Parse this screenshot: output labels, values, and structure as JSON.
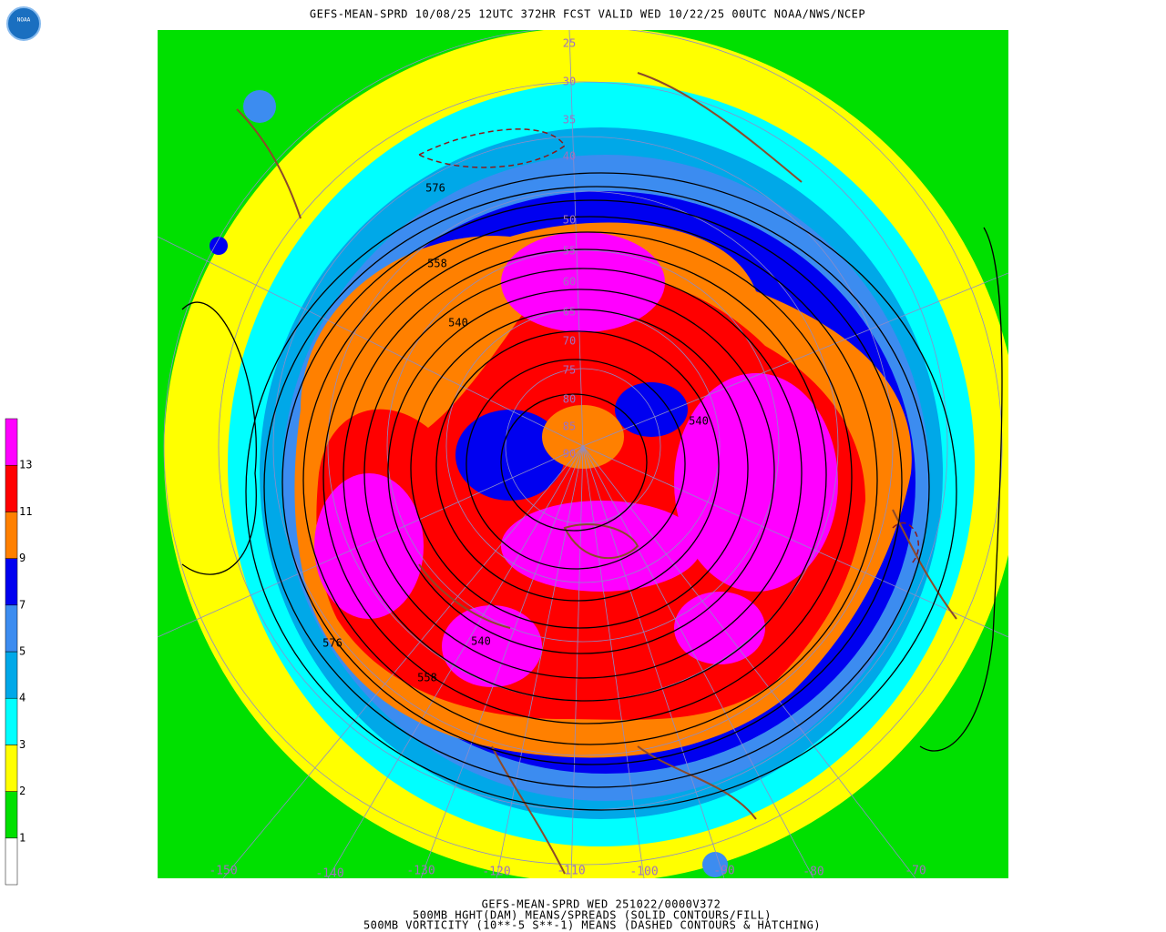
{
  "header": {
    "title": "GEFS-MEAN-SPRD 10/08/25 12UTC 372HR FCST VALID WED 10/22/25 00UTC NOAA/NWS/NCEP"
  },
  "logo": {
    "text": "NOAA"
  },
  "colorbar": {
    "colors": [
      "#ffffff",
      "#00e000",
      "#ffff00",
      "#00ffff",
      "#00a8e8",
      "#3c8cf0",
      "#0000f0",
      "#ff8000",
      "#ff0000",
      "#ff00ff"
    ],
    "labels": [
      "1",
      "2",
      "3",
      "4",
      "5",
      "7",
      "9",
      "11",
      "13"
    ]
  },
  "lat_labels": [
    "25",
    "30",
    "35",
    "40",
    "50",
    "55",
    "60",
    "65",
    "70",
    "75",
    "80",
    "85",
    "90"
  ],
  "lon_labels": [
    "-150",
    "-140",
    "-130",
    "-120",
    "-110",
    "-100",
    "-90",
    "-80",
    "-70"
  ],
  "contour_labels": [
    "576",
    "558",
    "540",
    "576",
    "558",
    "540",
    "540"
  ],
  "footer": {
    "line1": "GEFS-MEAN-SPRD WED 251022/0000V372",
    "line2": "500MB HGHT(DAM) MEANS/SPREADS (SOLID CONTOURS/FILL)",
    "line3": "500MB VORTICITY (10**-5 S**-1) MEANS (DASHED CONTOURS & HATCHING)"
  }
}
